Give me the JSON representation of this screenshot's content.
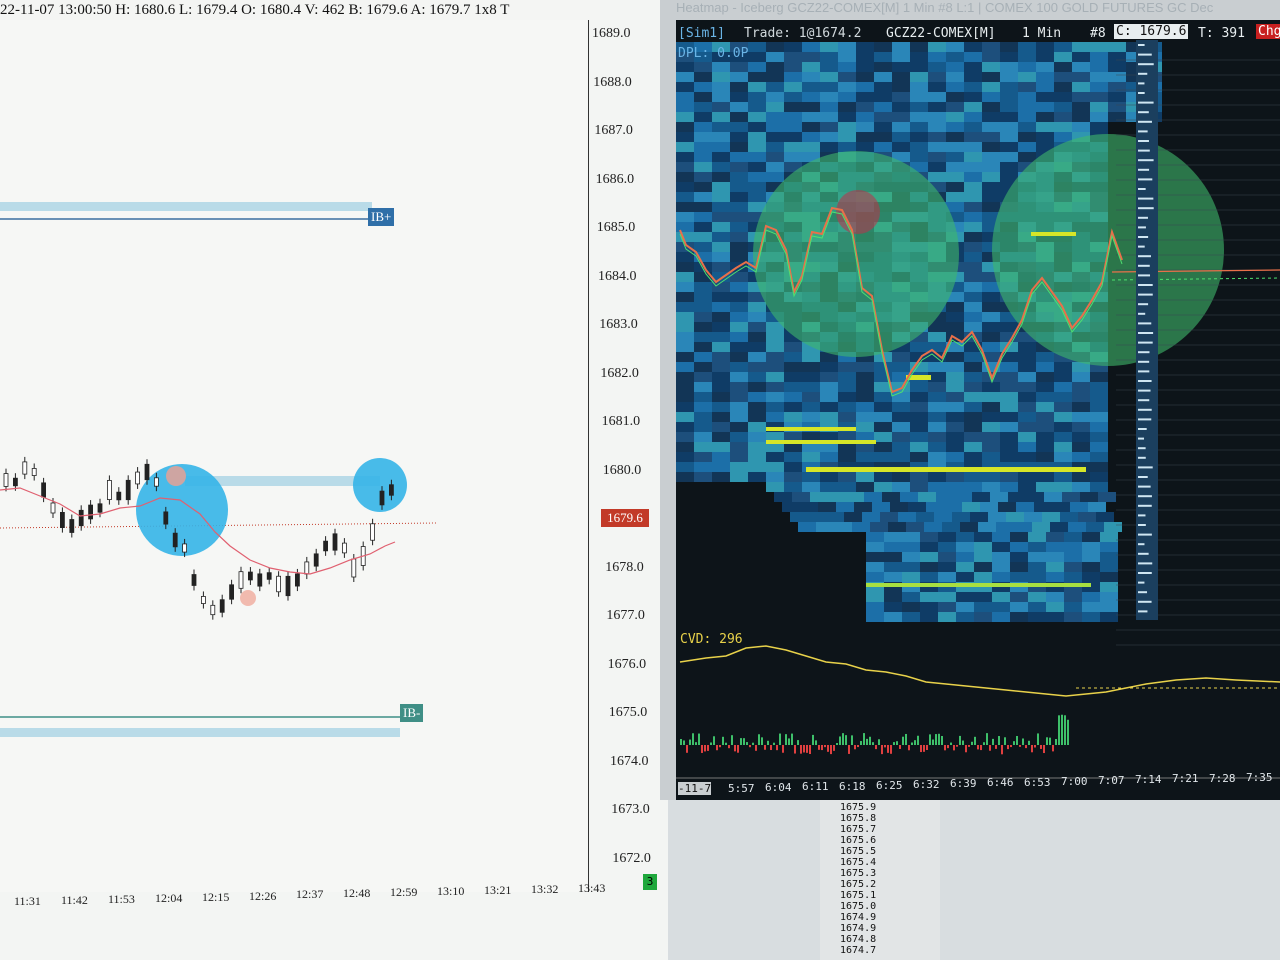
{
  "left_chart": {
    "header": "22-11-07 13:00:50 H: 1680.6 L: 1679.4 O: 1680.4 V: 462 B: 1679.6 A: 1679.7 1x8 T",
    "price_axis": [
      "1689.0",
      "1688.0",
      "1687.0",
      "1686.0",
      "1685.0",
      "1684.0",
      "1683.0",
      "1682.0",
      "1681.0",
      "1680.0",
      "1679.0",
      "1678.0",
      "1677.0",
      "1676.0",
      "1675.0",
      "1674.0",
      "1673.0",
      "1672.0"
    ],
    "current_price": "1679.6",
    "time_axis": [
      "11:31",
      "11:42",
      "11:53",
      "12:04",
      "12:15",
      "12:26",
      "12:37",
      "12:48",
      "12:59",
      "13:10",
      "13:21",
      "13:32",
      "13:43"
    ],
    "ib_plus_label": "IB+",
    "ib_minus_label": "IB-",
    "bar_count": "3",
    "colors": {
      "ib_band": "#b9dbe8",
      "ib_plus_box": "#2f6fa8",
      "ib_minus_box": "#3f8f86",
      "highlight_circle": "#35b4e8",
      "ma_line": "#e06070",
      "price_tag": "#c23a28"
    }
  },
  "heatmap": {
    "window_title": "Heatmap - Iceberg GCZ22-COMEX[M] 1 Min #8 L:1 | COMEX 100 GOLD FUTURES GC Dec",
    "sim_label": "[Sim1]",
    "trade_label": "Trade: 1@1674.2",
    "symbol_label": "GCZ22-COMEX[M]",
    "interval_label": "1 Min",
    "hash_label": "#8",
    "close_label": "C: 1679.6",
    "ticks_label": "T: 391",
    "chg_label": "Chg",
    "dpl_label": "DPL: 0.0P",
    "cvd_label": "CVD: 296",
    "date_label": "-11-7",
    "time_axis": [
      "5:57",
      "6:04",
      "6:11",
      "6:18",
      "6:25",
      "6:32",
      "6:39",
      "6:46",
      "6:53",
      "7:00",
      "7:07",
      "7:14",
      "7:21",
      "7:28",
      "7:35"
    ],
    "colors": {
      "background": "#0d1419",
      "heat_cool": "#1c6fa8",
      "heat_hot": "#d6e628",
      "circle": "#3fb86a",
      "price_line": "#e8704a",
      "cvd_line": "#e8d24a"
    }
  },
  "ladder": [
    "1675.9",
    "1675.8",
    "1675.7",
    "1675.6",
    "1675.5",
    "1675.4",
    "1675.3",
    "1675.2",
    "1675.1",
    "1675.0",
    "1674.9",
    "1674.9",
    "1674.8",
    "1674.7"
  ]
}
